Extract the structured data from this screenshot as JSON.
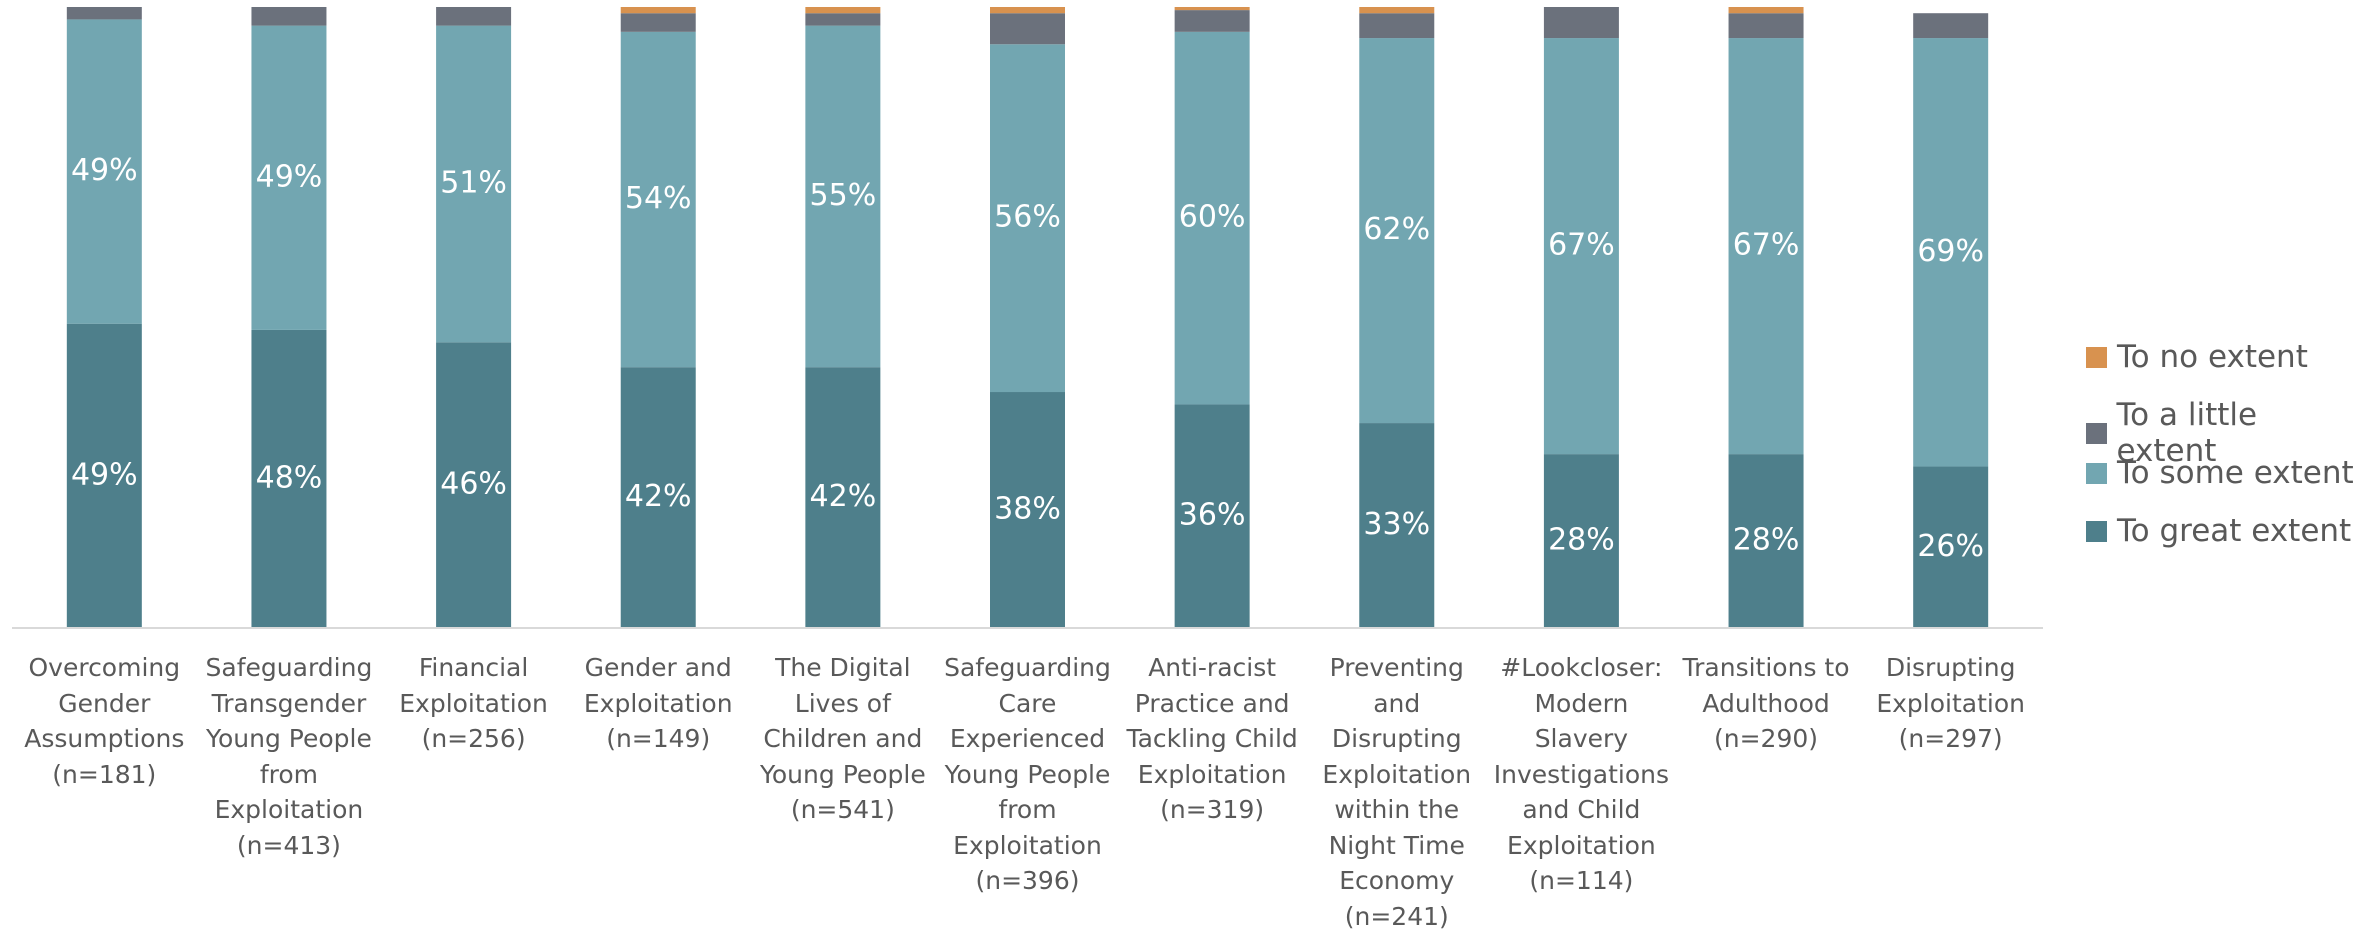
{
  "chart_data": {
    "type": "stacked_bar",
    "categories": [
      "Overcoming Gender Assumptions (n=181)",
      "Safeguarding Transgender Young People from Exploitation (n=413)",
      "Financial Exploitation (n=256)",
      "Gender and Exploitation (n=149)",
      "The Digital Lives of Children and Young People (n=541)",
      "Safeguarding Care Experienced Young People from Exploitation (n=396)",
      "Anti-racist Practice and Tackling Child Exploitation (n=319)",
      "Preventing and Disrupting Exploitation within the Night Time Economy (n=241)",
      "#Lookcloser: Modern Slavery Investigations and Child Exploitation (n=114)",
      "Transitions to Adulthood (n=290)",
      "Disrupting Exploitation (n=297)"
    ],
    "series": [
      {
        "name": "To great extent",
        "color": "#4e7f8b",
        "values": [
          49,
          48,
          46,
          42,
          42,
          38,
          36,
          33,
          28,
          28,
          26
        ],
        "value_labels": [
          "49%",
          "48%",
          "46%",
          "42%",
          "42%",
          "38%",
          "36%",
          "33%",
          "28%",
          "28%",
          "26%"
        ]
      },
      {
        "name": "To some extent",
        "color": "#72a6b1",
        "values": [
          49,
          49,
          51,
          54,
          55,
          56,
          60,
          62,
          67,
          67,
          69
        ],
        "value_labels": [
          "49%",
          "49%",
          "51%",
          "54%",
          "55%",
          "56%",
          "60%",
          "62%",
          "67%",
          "67%",
          "69%"
        ]
      },
      {
        "name": "To a little extent",
        "color": "#6b717c",
        "values": [
          2,
          3,
          3,
          3,
          2,
          5,
          3.5,
          4,
          5,
          4,
          4
        ]
      },
      {
        "name": "To no extent",
        "color": "#d8924f",
        "values": [
          0,
          0,
          0,
          1,
          1,
          1,
          0.5,
          1,
          0,
          1,
          0
        ]
      }
    ],
    "ylim": [
      0,
      100
    ],
    "legend": "right"
  }
}
